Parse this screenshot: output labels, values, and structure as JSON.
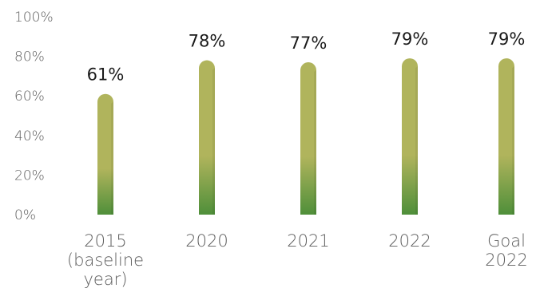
{
  "chart_data": {
    "type": "bar",
    "categories": [
      "2015 (baseline year)",
      "2020",
      "2021",
      "2022",
      "Goal 2022"
    ],
    "category_lines": [
      [
        "2015",
        "(baseline",
        "year)"
      ],
      [
        "2020"
      ],
      [
        "2021"
      ],
      [
        "2022"
      ],
      [
        "Goal",
        "2022"
      ]
    ],
    "values": [
      61,
      78,
      77,
      79,
      79
    ],
    "value_labels": [
      "61%",
      "78%",
      "77%",
      "79%",
      "79%"
    ],
    "y_ticks": [
      "0%",
      "20%",
      "40%",
      "60%",
      "80%",
      "100%"
    ],
    "ylim": [
      0,
      100
    ],
    "grid": false,
    "colors": {
      "bar_top": "#b0b45c",
      "bar_bottom": "#4f8f3a",
      "text": "#5d5d5d"
    }
  }
}
